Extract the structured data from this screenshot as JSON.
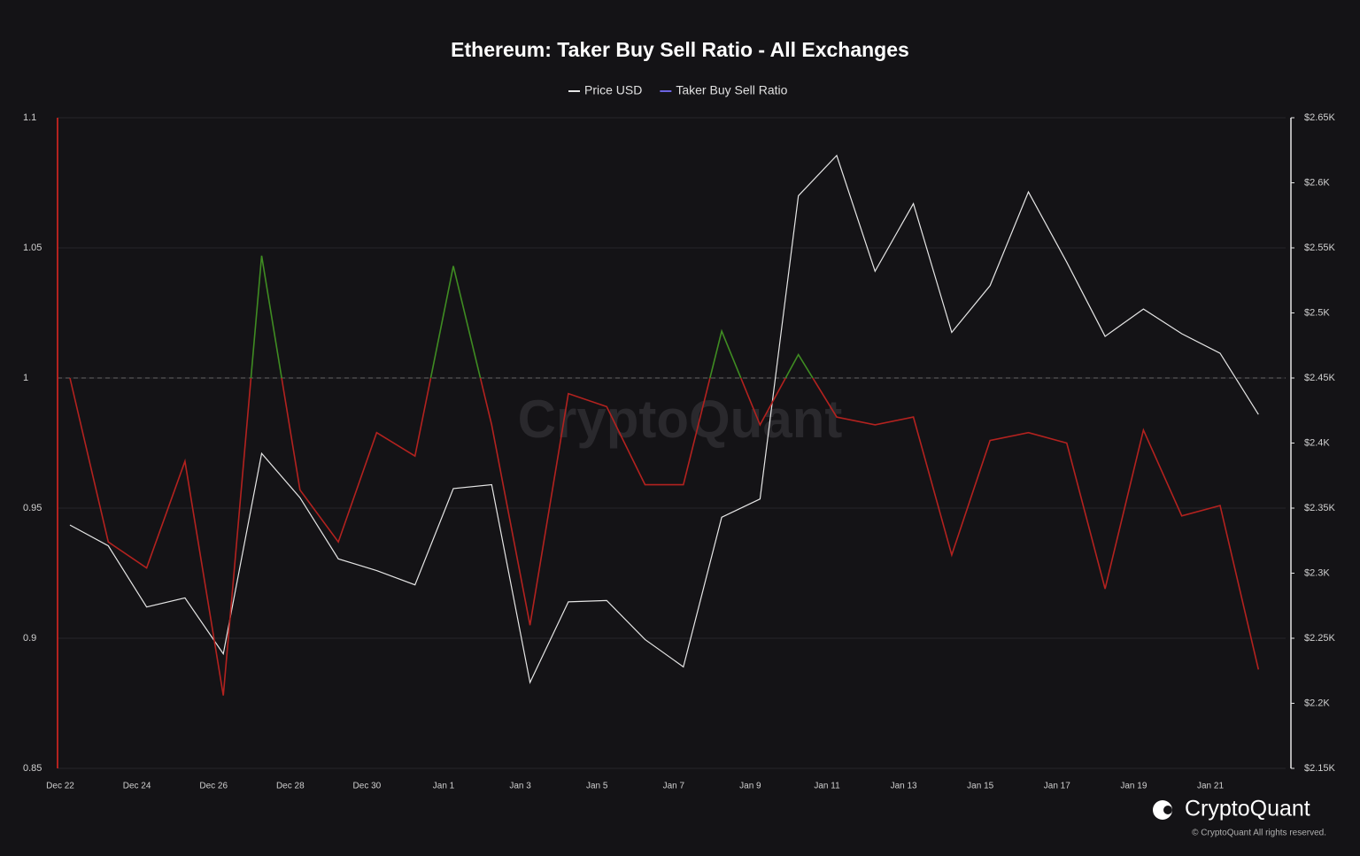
{
  "chart_data": {
    "type": "line",
    "title": "Ethereum: Taker Buy Sell Ratio - All Exchanges",
    "watermark": "CryptoQuant",
    "brand": "CryptoQuant",
    "copyright": "© CryptoQuant All rights reserved.",
    "categories": [
      "Dec 22",
      null,
      "Dec 24",
      null,
      "Dec 26",
      null,
      "Dec 28",
      null,
      "Dec 30",
      null,
      "Jan 1",
      null,
      "Jan 3",
      null,
      "Jan 5",
      null,
      "Jan 7",
      null,
      "Jan 9",
      null,
      "Jan 11",
      null,
      "Jan 13",
      null,
      "Jan 15",
      null,
      "Jan 17",
      null,
      "Jan 19",
      null,
      "Jan 21",
      null
    ],
    "series": [
      {
        "name": "Price USD",
        "color": "#e6e6e6",
        "axis": "y2",
        "values": [
          2337,
          2321,
          2274,
          2281,
          2238,
          2392,
          2358,
          2311,
          2302,
          2291,
          2365,
          2368,
          2216,
          2278,
          2279,
          2249,
          2228,
          2343,
          2357,
          2590,
          2621,
          2532,
          2584,
          2485,
          2521,
          2593,
          2539,
          2482,
          2503,
          2484,
          2469,
          2422
        ]
      },
      {
        "name": "Taker Buy Sell Ratio",
        "color": "#6b63e0",
        "color_above": "#3f8c22",
        "color_below": "#b3221f",
        "values": [
          1.0,
          0.937,
          0.927,
          0.968,
          0.878,
          1.047,
          0.957,
          0.937,
          0.979,
          0.97,
          1.043,
          0.982,
          0.905,
          0.994,
          0.989,
          0.959,
          0.959,
          1.018,
          0.982,
          1.009,
          0.985,
          0.982,
          0.985,
          0.932,
          0.976,
          0.979,
          0.975,
          0.919,
          0.98,
          0.947,
          0.951,
          0.888
        ]
      }
    ],
    "reference_line": 1,
    "ylim": [
      0.85,
      1.1
    ],
    "yticks": [
      0.85,
      0.9,
      0.95,
      1,
      1.05,
      1.1
    ],
    "y2lim": [
      2150,
      2650
    ],
    "y2ticks": [
      {
        "value": 2150,
        "label": "$2.15K"
      },
      {
        "value": 2200,
        "label": "$2.2K"
      },
      {
        "value": 2250,
        "label": "$2.25K"
      },
      {
        "value": 2300,
        "label": "$2.3K"
      },
      {
        "value": 2350,
        "label": "$2.35K"
      },
      {
        "value": 2400,
        "label": "$2.4K"
      },
      {
        "value": 2450,
        "label": "$2.45K"
      },
      {
        "value": 2500,
        "label": "$2.5K"
      },
      {
        "value": 2550,
        "label": "$2.55K"
      },
      {
        "value": 2600,
        "label": "$2.6K"
      },
      {
        "value": 2650,
        "label": "$2.65K"
      }
    ],
    "grid": true
  }
}
